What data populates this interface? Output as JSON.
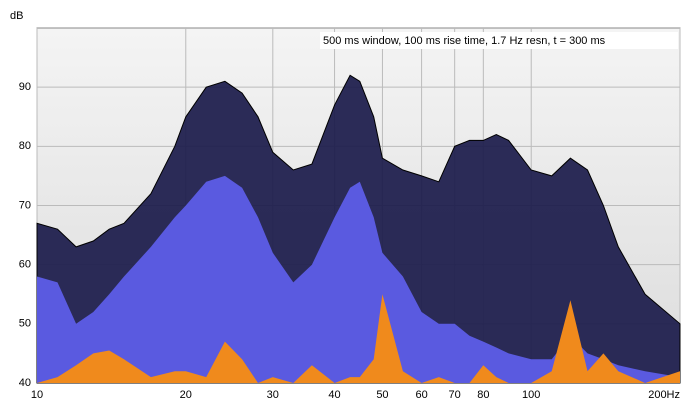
{
  "chart_data": {
    "type": "waterfall",
    "y_label": "dB",
    "annotation": "500 ms window, 100 ms rise time,  1.7 Hz resn, t = 300 ms",
    "x": [
      10,
      11,
      12,
      13,
      14,
      15,
      17,
      19,
      20,
      22,
      24,
      26,
      28,
      30,
      33,
      36,
      40,
      43,
      45,
      48,
      50,
      55,
      60,
      65,
      70,
      75,
      80,
      85,
      90,
      100,
      110,
      120,
      130,
      140,
      150,
      170,
      200
    ],
    "series": [
      {
        "color": "#1a1a4a",
        "values": [
          67,
          66,
          63,
          64,
          66,
          67,
          72,
          80,
          85,
          90,
          91,
          89,
          85,
          79,
          76,
          77,
          87,
          92,
          91,
          85,
          78,
          76,
          75,
          74,
          80,
          81,
          81,
          82,
          81,
          76,
          75,
          78,
          76,
          70,
          63,
          55,
          50
        ]
      },
      {
        "color": "#5a5ae0",
        "values": [
          58,
          57,
          50,
          52,
          55,
          58,
          63,
          68,
          70,
          74,
          75,
          73,
          68,
          62,
          57,
          60,
          68,
          73,
          74,
          68,
          62,
          58,
          52,
          50,
          50,
          48,
          47,
          46,
          45,
          44,
          44,
          48,
          45,
          44,
          43,
          42,
          41
        ]
      },
      {
        "color": "#f08a1c",
        "values": [
          40,
          41,
          43,
          45,
          45.5,
          44,
          41,
          42,
          42,
          41,
          47,
          44,
          40,
          41,
          40,
          43,
          40,
          41,
          41,
          44,
          55,
          42,
          40,
          41,
          40,
          40,
          43,
          41,
          40,
          40,
          42,
          54,
          42,
          45,
          42,
          40,
          42
        ]
      }
    ],
    "xlim": [
      10,
      200
    ],
    "log_x": true,
    "xticks": [
      10,
      20,
      30,
      40,
      50,
      60,
      70,
      80,
      100,
      {
        "value": 200,
        "label": "200Hz"
      }
    ],
    "ylim": [
      40,
      100
    ],
    "yticks": [
      40,
      50,
      60,
      70,
      80,
      90
    ],
    "grid": true
  }
}
